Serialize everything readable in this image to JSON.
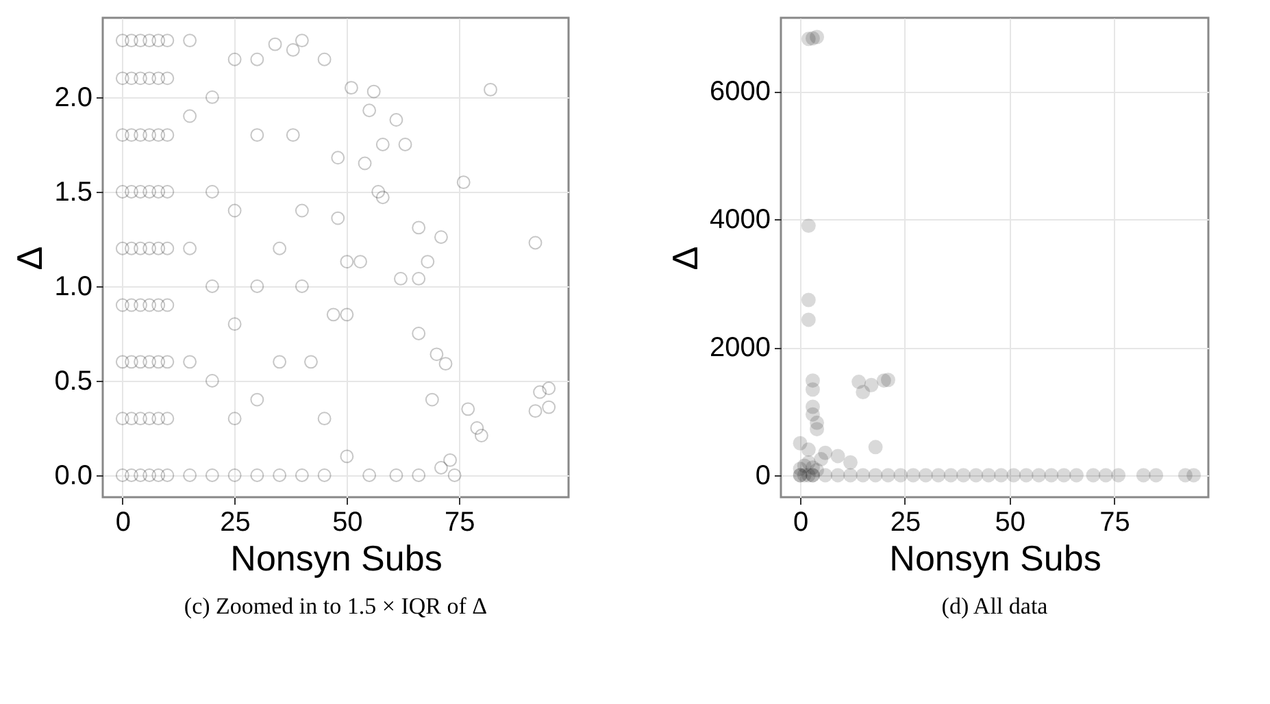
{
  "chart_data": [
    {
      "type": "scatter",
      "xlabel": "Nonsyn Subs",
      "ylabel": "Δ",
      "annotations": [
        "(c) Zoomed in to 1.5 × IQR of Δ"
      ],
      "marker": "circle",
      "grid": true,
      "legend": false,
      "xlim": [
        -4.4,
        99.4
      ],
      "ylim": [
        -0.116,
        2.42
      ],
      "xticks": [
        0,
        25,
        50,
        75
      ],
      "yticks": [
        {
          "value": 0,
          "label": "0.0"
        },
        {
          "value": 0.5,
          "label": "0.5"
        },
        {
          "value": 1,
          "label": "1.0"
        },
        {
          "value": 1.5,
          "label": "1.5"
        },
        {
          "value": 2,
          "label": "2.0"
        }
      ],
      "series": [
        {
          "color": "#000000",
          "x": [
            0,
            0,
            0,
            0,
            0,
            0,
            0,
            0,
            0,
            2,
            2,
            2,
            2,
            2,
            2,
            2,
            2,
            2,
            4,
            4,
            4,
            4,
            4,
            4,
            4,
            4,
            4,
            6,
            6,
            6,
            6,
            6,
            6,
            6,
            6,
            6,
            8,
            8,
            8,
            8,
            8,
            8,
            8,
            8,
            8,
            10,
            10,
            10,
            10,
            10,
            10,
            10,
            10,
            10,
            15,
            15,
            15,
            15,
            15,
            20,
            20,
            20,
            20,
            20,
            25,
            25,
            25,
            25,
            25,
            30,
            30,
            30,
            30,
            30,
            40,
            38,
            34,
            51,
            56,
            55,
            61,
            63,
            58,
            54,
            48,
            76,
            57,
            58,
            92,
            66,
            71,
            48,
            50,
            53,
            62,
            66,
            68,
            47,
            50,
            66,
            70,
            72,
            69,
            93,
            95,
            92,
            95,
            77,
            79,
            80,
            73,
            71,
            74,
            66,
            61,
            82,
            40,
            40,
            42,
            45,
            50,
            55,
            35,
            40,
            45,
            35,
            35,
            38,
            45
          ],
          "values": [
            0,
            0.3,
            0.6,
            0.9,
            1.2,
            1.5,
            1.8,
            2.1,
            2.3,
            0,
            0.3,
            0.6,
            0.9,
            1.2,
            1.5,
            1.8,
            2.1,
            2.3,
            0,
            0.3,
            0.6,
            0.9,
            1.2,
            1.5,
            1.8,
            2.1,
            2.3,
            0,
            0.3,
            0.6,
            0.9,
            1.2,
            1.5,
            1.8,
            2.1,
            2.3,
            0,
            0.3,
            0.6,
            0.9,
            1.2,
            1.5,
            1.8,
            2.1,
            2.3,
            0,
            0.3,
            0.6,
            0.9,
            1.2,
            1.5,
            1.8,
            2.1,
            2.3,
            0,
            0.6,
            1.2,
            1.9,
            2.3,
            0,
            0.5,
            1.0,
            1.5,
            2.0,
            0,
            0.3,
            0.8,
            1.4,
            2.2,
            0,
            0.4,
            1.0,
            1.8,
            2.2,
            2.3,
            2.25,
            2.28,
            2.05,
            2.03,
            1.93,
            1.88,
            1.75,
            1.75,
            1.65,
            1.68,
            1.55,
            1.5,
            1.47,
            1.23,
            1.31,
            1.26,
            1.36,
            1.13,
            1.13,
            1.04,
            1.04,
            1.13,
            0.85,
            0.85,
            0.75,
            0.64,
            0.59,
            0.4,
            0.44,
            0.46,
            0.34,
            0.36,
            0.35,
            0.25,
            0.21,
            0.08,
            0.04,
            0,
            0,
            0,
            2.04,
            1.4,
            1.0,
            0.6,
            0.3,
            0.1,
            0,
            0,
            0,
            0,
            0.6,
            1.2,
            1.8,
            2.2
          ]
        }
      ]
    },
    {
      "type": "scatter",
      "xlabel": "Nonsyn Subs",
      "ylabel": "Δ",
      "annotations": [
        "(d) All data"
      ],
      "marker": "circle",
      "grid": true,
      "legend": false,
      "xlim": [
        -4.6,
        97.5
      ],
      "ylim": [
        -343,
        7150
      ],
      "xticks": [
        0,
        25,
        50,
        75
      ],
      "yticks": [
        0,
        2000,
        4000,
        6000
      ],
      "series": [
        {
          "color": "#000000",
          "x": [
            2,
            3,
            4,
            2,
            2,
            2,
            3,
            3,
            3,
            3,
            4,
            4,
            14,
            15,
            17,
            20,
            21,
            18,
            0,
            2,
            6,
            9,
            12,
            5,
            0,
            1,
            2,
            3,
            4,
            0,
            1,
            2,
            3,
            0,
            3,
            6,
            9,
            12,
            15,
            18,
            21,
            24,
            27,
            30,
            33,
            36,
            39,
            42,
            45,
            48,
            51,
            54,
            57,
            60,
            63,
            66,
            70,
            73,
            76,
            82,
            85,
            92,
            94
          ],
          "values": [
            6820,
            6830,
            6850,
            3900,
            2740,
            2430,
            1480,
            1340,
            1070,
            950,
            820,
            720,
            1460,
            1300,
            1410,
            1480,
            1490,
            440,
            500,
            400,
            350,
            300,
            200,
            250,
            100,
            150,
            200,
            120,
            80,
            0,
            0,
            0,
            0,
            0,
            0,
            0,
            0,
            0,
            0,
            0,
            0,
            0,
            0,
            0,
            0,
            0,
            0,
            0,
            0,
            0,
            0,
            0,
            0,
            0,
            0,
            0,
            0,
            0,
            0,
            0,
            0,
            0,
            0
          ]
        }
      ]
    }
  ]
}
